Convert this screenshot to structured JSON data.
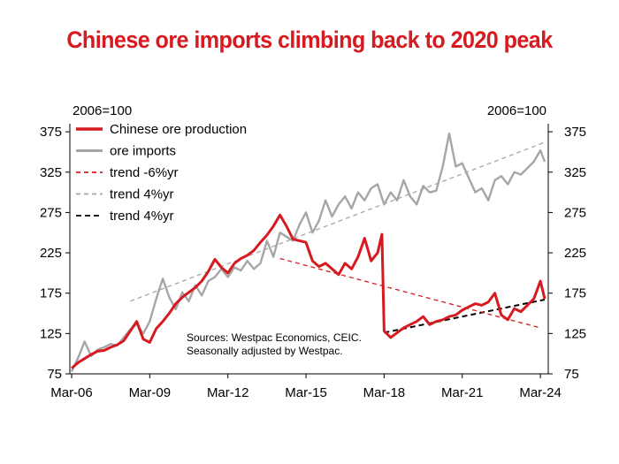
{
  "chart_data": {
    "type": "line",
    "title": "Chinese ore imports climbing back to 2020 peak",
    "left_axis_label": "2006=100",
    "right_axis_label": "2006=100",
    "y_ticks": [
      75,
      125,
      175,
      225,
      275,
      325,
      375
    ],
    "ylim": [
      75,
      385
    ],
    "x_range": [
      "2006-03",
      "2024-05"
    ],
    "x_ticks": [
      {
        "label": "Mar-06",
        "date": "2006-03"
      },
      {
        "label": "Mar-09",
        "date": "2009-03"
      },
      {
        "label": "Mar-12",
        "date": "2012-03"
      },
      {
        "label": "Mar-15",
        "date": "2015-03"
      },
      {
        "label": "Mar-18",
        "date": "2018-03"
      },
      {
        "label": "Mar-21",
        "date": "2021-03"
      },
      {
        "label": "Mar-24",
        "date": "2024-03"
      }
    ],
    "legend_position": "top-left",
    "annotation": [
      "Sources: Westpac Economics, CEIC.",
      "Seasonally adjusted by Westpac."
    ],
    "colors": {
      "production": "#d71920",
      "imports": "#a6a6a6",
      "trend_red": "#d71920",
      "trend_grey": "#a6a6a6",
      "trend_black": "#000000"
    },
    "series": [
      {
        "name": "Chinese ore production",
        "style": "solid",
        "color": "#d71920",
        "points": [
          [
            "2006-03",
            82
          ],
          [
            "2006-06",
            89
          ],
          [
            "2006-09",
            94
          ],
          [
            "2006-12",
            99
          ],
          [
            "2007-03",
            103
          ],
          [
            "2007-06",
            104
          ],
          [
            "2007-09",
            108
          ],
          [
            "2007-12",
            111
          ],
          [
            "2008-03",
            116
          ],
          [
            "2008-06",
            128
          ],
          [
            "2008-09",
            140
          ],
          [
            "2008-12",
            118
          ],
          [
            "2009-03",
            114
          ],
          [
            "2009-06",
            131
          ],
          [
            "2009-09",
            140
          ],
          [
            "2009-12",
            150
          ],
          [
            "2010-03",
            162
          ],
          [
            "2010-06",
            170
          ],
          [
            "2010-09",
            176
          ],
          [
            "2010-12",
            182
          ],
          [
            "2011-03",
            190
          ],
          [
            "2011-06",
            202
          ],
          [
            "2011-09",
            217
          ],
          [
            "2011-12",
            207
          ],
          [
            "2012-03",
            200
          ],
          [
            "2012-06",
            212
          ],
          [
            "2012-09",
            218
          ],
          [
            "2012-12",
            222
          ],
          [
            "2013-03",
            228
          ],
          [
            "2013-06",
            238
          ],
          [
            "2013-09",
            247
          ],
          [
            "2013-12",
            258
          ],
          [
            "2014-03",
            272
          ],
          [
            "2014-06",
            258
          ],
          [
            "2014-09",
            242
          ],
          [
            "2014-12",
            240
          ],
          [
            "2015-03",
            238
          ],
          [
            "2015-06",
            215
          ],
          [
            "2015-09",
            208
          ],
          [
            "2015-12",
            212
          ],
          [
            "2016-03",
            205
          ],
          [
            "2016-06",
            198
          ],
          [
            "2016-09",
            212
          ],
          [
            "2016-12",
            205
          ],
          [
            "2017-03",
            220
          ],
          [
            "2017-06",
            243
          ],
          [
            "2017-09",
            215
          ],
          [
            "2017-12",
            225
          ],
          [
            "2018-02",
            248
          ],
          [
            "2018-03",
            128
          ],
          [
            "2018-06",
            120
          ],
          [
            "2018-09",
            126
          ],
          [
            "2018-12",
            132
          ],
          [
            "2019-03",
            136
          ],
          [
            "2019-06",
            140
          ],
          [
            "2019-09",
            146
          ],
          [
            "2019-12",
            136
          ],
          [
            "2020-03",
            140
          ],
          [
            "2020-06",
            142
          ],
          [
            "2020-09",
            146
          ],
          [
            "2020-12",
            148
          ],
          [
            "2021-03",
            154
          ],
          [
            "2021-06",
            158
          ],
          [
            "2021-09",
            162
          ],
          [
            "2021-12",
            160
          ],
          [
            "2022-03",
            164
          ],
          [
            "2022-06",
            175
          ],
          [
            "2022-09",
            148
          ],
          [
            "2022-12",
            142
          ],
          [
            "2023-03",
            156
          ],
          [
            "2023-06",
            152
          ],
          [
            "2023-09",
            160
          ],
          [
            "2023-12",
            168
          ],
          [
            "2024-03",
            190
          ],
          [
            "2024-05",
            168
          ]
        ]
      },
      {
        "name": "ore imports",
        "style": "solid",
        "color": "#a6a6a6",
        "points": [
          [
            "2006-03",
            78
          ],
          [
            "2006-06",
            95
          ],
          [
            "2006-09",
            115
          ],
          [
            "2006-12",
            97
          ],
          [
            "2007-03",
            105
          ],
          [
            "2007-06",
            108
          ],
          [
            "2007-09",
            112
          ],
          [
            "2007-12",
            110
          ],
          [
            "2008-03",
            120
          ],
          [
            "2008-06",
            130
          ],
          [
            "2008-09",
            137
          ],
          [
            "2008-12",
            125
          ],
          [
            "2009-03",
            140
          ],
          [
            "2009-06",
            168
          ],
          [
            "2009-09",
            193
          ],
          [
            "2009-12",
            170
          ],
          [
            "2010-03",
            155
          ],
          [
            "2010-06",
            176
          ],
          [
            "2010-09",
            165
          ],
          [
            "2010-12",
            185
          ],
          [
            "2011-03",
            172
          ],
          [
            "2011-06",
            190
          ],
          [
            "2011-09",
            195
          ],
          [
            "2011-12",
            205
          ],
          [
            "2012-03",
            195
          ],
          [
            "2012-06",
            207
          ],
          [
            "2012-09",
            203
          ],
          [
            "2012-12",
            215
          ],
          [
            "2013-03",
            205
          ],
          [
            "2013-06",
            212
          ],
          [
            "2013-09",
            240
          ],
          [
            "2013-12",
            220
          ],
          [
            "2014-03",
            250
          ],
          [
            "2014-06",
            245
          ],
          [
            "2014-09",
            240
          ],
          [
            "2014-12",
            260
          ],
          [
            "2015-03",
            275
          ],
          [
            "2015-06",
            250
          ],
          [
            "2015-09",
            265
          ],
          [
            "2015-12",
            290
          ],
          [
            "2016-03",
            270
          ],
          [
            "2016-06",
            285
          ],
          [
            "2016-09",
            295
          ],
          [
            "2016-12",
            280
          ],
          [
            "2017-03",
            300
          ],
          [
            "2017-06",
            290
          ],
          [
            "2017-09",
            305
          ],
          [
            "2017-12",
            310
          ],
          [
            "2018-03",
            285
          ],
          [
            "2018-06",
            300
          ],
          [
            "2018-09",
            290
          ],
          [
            "2018-12",
            315
          ],
          [
            "2019-03",
            295
          ],
          [
            "2019-06",
            285
          ],
          [
            "2019-09",
            308
          ],
          [
            "2019-12",
            300
          ],
          [
            "2020-03",
            302
          ],
          [
            "2020-06",
            332
          ],
          [
            "2020-09",
            373
          ],
          [
            "2020-12",
            332
          ],
          [
            "2021-03",
            336
          ],
          [
            "2021-06",
            318
          ],
          [
            "2021-09",
            300
          ],
          [
            "2021-12",
            305
          ],
          [
            "2022-03",
            290
          ],
          [
            "2022-06",
            315
          ],
          [
            "2022-09",
            320
          ],
          [
            "2022-12",
            310
          ],
          [
            "2023-03",
            325
          ],
          [
            "2023-06",
            322
          ],
          [
            "2023-09",
            330
          ],
          [
            "2023-12",
            338
          ],
          [
            "2024-03",
            352
          ],
          [
            "2024-05",
            338
          ]
        ]
      },
      {
        "name": "trend -6%yr",
        "style": "dashed",
        "color": "#d71920",
        "points": [
          [
            "2014-03",
            218
          ],
          [
            "2024-03",
            132
          ]
        ]
      },
      {
        "name": "trend 4%yr",
        "style": "dashed",
        "color": "#a6a6a6",
        "points": [
          [
            "2008-06",
            165
          ],
          [
            "2024-05",
            362
          ]
        ]
      },
      {
        "name": "trend 4%yr",
        "style": "dashed",
        "color": "#000000",
        "points": [
          [
            "2018-03",
            126
          ],
          [
            "2024-05",
            167
          ]
        ]
      }
    ]
  }
}
